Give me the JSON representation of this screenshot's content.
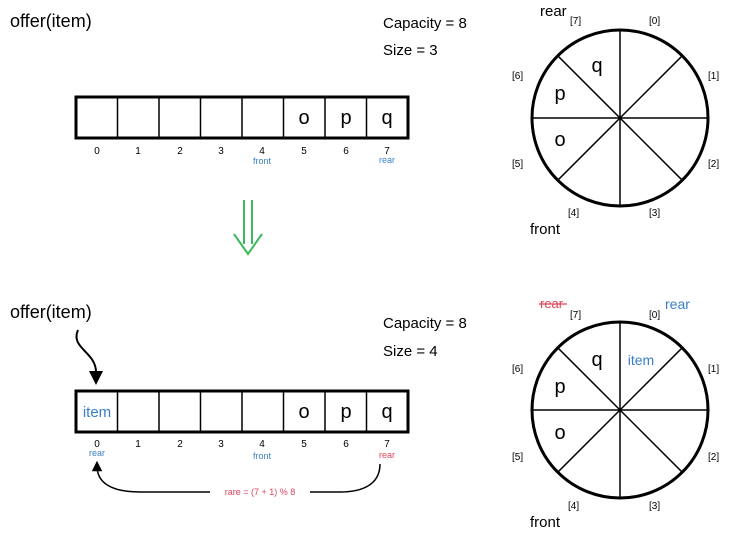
{
  "top": {
    "title": "offer(item)",
    "capacity": "Capacity = 8",
    "size": "Size = 3",
    "cells": [
      "",
      "",
      "",
      "",
      "",
      "o",
      "p",
      "q"
    ],
    "indices": [
      "0",
      "1",
      "2",
      "3",
      "4",
      "5",
      "6",
      "7"
    ],
    "front_label": "front",
    "rear_label": "rear",
    "circle": {
      "slot_labels": [
        "[0]",
        "[1]",
        "[2]",
        "[3]",
        "[4]",
        "[5]",
        "[6]",
        "[7]"
      ],
      "slot_values": [
        "",
        "",
        "",
        "",
        "",
        "o",
        "p",
        "q"
      ],
      "rear_label": "rear",
      "front_label": "front"
    }
  },
  "arrow": {
    "color": "#3db85c"
  },
  "bottom": {
    "title": "offer(item)",
    "capacity": "Capacity = 8",
    "size": "Size = 4",
    "cells": [
      "item",
      "",
      "",
      "",
      "",
      "o",
      "p",
      "q"
    ],
    "indices": [
      "0",
      "1",
      "2",
      "3",
      "4",
      "5",
      "6",
      "7"
    ],
    "rear_label_new": "rear",
    "front_label": "front",
    "rear_label_old": "rear",
    "formula": "rare = (7 + 1) % 8",
    "circle": {
      "slot_labels": [
        "[0]",
        "[1]",
        "[2]",
        "[3]",
        "[4]",
        "[5]",
        "[6]",
        "[7]"
      ],
      "slot_values": [
        "item",
        "",
        "",
        "",
        "",
        "o",
        "p",
        "q"
      ],
      "rear_old": "rear",
      "rear_new": "rear",
      "front_label": "front"
    }
  },
  "colors": {
    "accent_blue": "#3a7fc8",
    "accent_red": "#e0445a",
    "arrow_green": "#3db85c"
  }
}
